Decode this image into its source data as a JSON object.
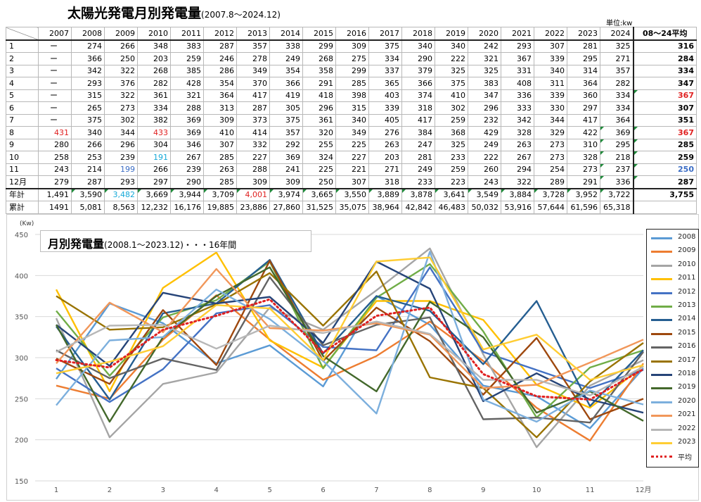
{
  "header": {
    "title": "太陽光発電月別発電量",
    "period": "(2007.8〜2024.12)",
    "unit": "単位:kw"
  },
  "table": {
    "columns": [
      "2007",
      "2008",
      "2009",
      "2010",
      "2011",
      "2012",
      "2013",
      "2014",
      "2015",
      "2016",
      "2017",
      "2018",
      "2019",
      "2020",
      "2021",
      "2022",
      "2023",
      "2024",
      "08〜24平均"
    ],
    "rows": [
      {
        "label": "1",
        "cells": [
          "ー",
          "274",
          "266",
          "348",
          "383",
          "287",
          "357",
          "338",
          "299",
          "309",
          "375",
          "340",
          "340",
          "242",
          "293",
          "307",
          "281",
          "325",
          "316"
        ]
      },
      {
        "label": "2",
        "cells": [
          "ー",
          "366",
          "250",
          "203",
          "259",
          "246",
          "278",
          "249",
          "268",
          "275",
          "334",
          "290",
          "222",
          "321",
          "367",
          "339",
          "295",
          "271",
          "284"
        ]
      },
      {
        "label": "3",
        "cells": [
          "ー",
          "342",
          "322",
          "268",
          "385",
          "286",
          "349",
          "354",
          "358",
          "299",
          "337",
          "379",
          "325",
          "325",
          "331",
          "340",
          "314",
          "357",
          "334"
        ]
      },
      {
        "label": "4",
        "cells": [
          "ー",
          "293",
          "376",
          "282",
          "428",
          "354",
          "370",
          "366",
          "291",
          "285",
          "365",
          "366",
          "375",
          "383",
          "408",
          "311",
          "364",
          "282",
          "347"
        ]
      },
      {
        "label": "5",
        "cells": [
          "ー",
          "315",
          "322",
          "361",
          "321",
          "364",
          "417",
          "419",
          "418",
          "398",
          "403",
          "374",
          "410",
          "347",
          "336",
          "339",
          "360",
          "334",
          "367"
        ]
      },
      {
        "label": "6",
        "cells": [
          "ー",
          "265",
          "273",
          "334",
          "288",
          "313",
          "287",
          "305",
          "296",
          "315",
          "339",
          "318",
          "302",
          "296",
          "333",
          "330",
          "297",
          "334",
          "307"
        ]
      },
      {
        "label": "7",
        "cells": [
          "ー",
          "375",
          "302",
          "382",
          "369",
          "309",
          "373",
          "375",
          "361",
          "340",
          "405",
          "417",
          "259",
          "232",
          "342",
          "344",
          "417",
          "364",
          "351"
        ]
      },
      {
        "label": "8",
        "cells": [
          "431",
          "340",
          "344",
          "433",
          "369",
          "410",
          "414",
          "357",
          "320",
          "349",
          "276",
          "384",
          "368",
          "429",
          "328",
          "329",
          "422",
          "369",
          "367"
        ]
      },
      {
        "label": "9",
        "cells": [
          "280",
          "266",
          "296",
          "304",
          "346",
          "307",
          "332",
          "292",
          "255",
          "225",
          "263",
          "247",
          "325",
          "249",
          "263",
          "273",
          "310",
          "295",
          "285"
        ]
      },
      {
        "label": "10",
        "cells": [
          "258",
          "253",
          "239",
          "191",
          "267",
          "285",
          "227",
          "369",
          "324",
          "227",
          "203",
          "281",
          "233",
          "222",
          "267",
          "273",
          "328",
          "218",
          "259"
        ]
      },
      {
        "label": "11",
        "cells": [
          "243",
          "214",
          "199",
          "266",
          "239",
          "263",
          "288",
          "241",
          "225",
          "221",
          "271",
          "249",
          "259",
          "260",
          "294",
          "254",
          "273",
          "237",
          "250"
        ]
      },
      {
        "label": "12月",
        "cells": [
          "279",
          "287",
          "293",
          "297",
          "290",
          "285",
          "309",
          "309",
          "250",
          "307",
          "318",
          "233",
          "223",
          "243",
          "322",
          "289",
          "291",
          "336",
          "287"
        ]
      }
    ],
    "total_row": {
      "label": "年計",
      "cells": [
        "1,491",
        "3,590",
        "3,482",
        "3,669",
        "3,944",
        "3,709",
        "4,001",
        "3,974",
        "3,665",
        "3,550",
        "3,889",
        "3,878",
        "3,641",
        "3,549",
        "3,884",
        "3,728",
        "3,952",
        "3,722",
        "3,755"
      ]
    },
    "cumulative_row": {
      "label": "累計",
      "cells": [
        "1491",
        "5,081",
        "8,563",
        "12,232",
        "16,176",
        "19,885",
        "23,886",
        "27,860",
        "31,525",
        "35,075",
        "38,964",
        "42,842",
        "46,483",
        "50,032",
        "53,916",
        "57,644",
        "61,596",
        "65,318",
        ""
      ]
    },
    "highlight_colors": {
      "red": "#e02020",
      "blue": "#3a6cc4",
      "cyan": "#15a9d8"
    }
  },
  "chart_data": {
    "type": "line",
    "title": "月別発電量",
    "subtitle": "(2008.1〜2023.12)・・・16年間",
    "ylabel": "(Kw)",
    "xlabel": "",
    "x": [
      "1",
      "2",
      "3",
      "4",
      "5",
      "6",
      "7",
      "8",
      "9",
      "10",
      "11",
      "12月"
    ],
    "ylim": [
      150,
      450
    ],
    "yticks": [
      150,
      200,
      250,
      300,
      350,
      400,
      450
    ],
    "grid": true,
    "legend": "right",
    "series": [
      {
        "name": "2008",
        "color": "#5b9bd5",
        "values": [
          274,
          366,
          342,
          293,
          315,
          265,
          375,
          340,
          266,
          253,
          214,
          287
        ]
      },
      {
        "name": "2009",
        "color": "#ed7d31",
        "values": [
          266,
          250,
          322,
          376,
          322,
          273,
          302,
          344,
          296,
          239,
          199,
          293
        ]
      },
      {
        "name": "2010",
        "color": "#a5a5a5",
        "values": [
          348,
          203,
          268,
          282,
          361,
          334,
          382,
          433,
          304,
          191,
          266,
          297
        ]
      },
      {
        "name": "2011",
        "color": "#ffc000",
        "values": [
          383,
          259,
          385,
          428,
          321,
          288,
          369,
          369,
          346,
          267,
          239,
          290
        ]
      },
      {
        "name": "2012",
        "color": "#4472c4",
        "values": [
          287,
          246,
          286,
          354,
          364,
          313,
          309,
          410,
          307,
          285,
          263,
          285
        ]
      },
      {
        "name": "2013",
        "color": "#70ad47",
        "values": [
          357,
          278,
          349,
          370,
          417,
          287,
          373,
          414,
          332,
          227,
          288,
          309
        ]
      },
      {
        "name": "2014",
        "color": "#255e91",
        "values": [
          338,
          249,
          354,
          366,
          419,
          305,
          375,
          357,
          292,
          369,
          241,
          309
        ]
      },
      {
        "name": "2015",
        "color": "#9e480e",
        "values": [
          299,
          268,
          358,
          291,
          418,
          296,
          361,
          320,
          255,
          324,
          225,
          250
        ]
      },
      {
        "name": "2016",
        "color": "#636363",
        "values": [
          309,
          275,
          299,
          285,
          398,
          315,
          340,
          349,
          225,
          227,
          221,
          307
        ]
      },
      {
        "name": "2017",
        "color": "#997300",
        "values": [
          375,
          334,
          337,
          365,
          403,
          339,
          405,
          276,
          263,
          203,
          271,
          318
        ]
      },
      {
        "name": "2018",
        "color": "#264478",
        "values": [
          340,
          290,
          379,
          366,
          374,
          318,
          417,
          384,
          247,
          281,
          249,
          233
        ]
      },
      {
        "name": "2019",
        "color": "#43682b",
        "values": [
          340,
          222,
          325,
          375,
          410,
          302,
          259,
          368,
          325,
          233,
          259,
          223
        ]
      },
      {
        "name": "2020",
        "color": "#7cafdd",
        "values": [
          242,
          321,
          325,
          383,
          347,
          296,
          232,
          429,
          249,
          222,
          260,
          243
        ]
      },
      {
        "name": "2021",
        "color": "#f1975a",
        "values": [
          293,
          367,
          331,
          408,
          336,
          333,
          342,
          328,
          263,
          267,
          294,
          322
        ]
      },
      {
        "name": "2022",
        "color": "#b7b7b7",
        "values": [
          307,
          339,
          340,
          311,
          339,
          330,
          344,
          329,
          273,
          273,
          254,
          289
        ]
      },
      {
        "name": "2023",
        "color": "#ffcd33",
        "values": [
          281,
          295,
          314,
          364,
          360,
          297,
          417,
          422,
          310,
          328,
          273,
          291
        ]
      },
      {
        "name": "平均",
        "color": "#e02020",
        "dashed": true,
        "values": [
          297,
          288,
          334,
          351,
          371,
          306,
          351,
          361,
          280,
          253,
          249,
          286
        ]
      }
    ]
  }
}
